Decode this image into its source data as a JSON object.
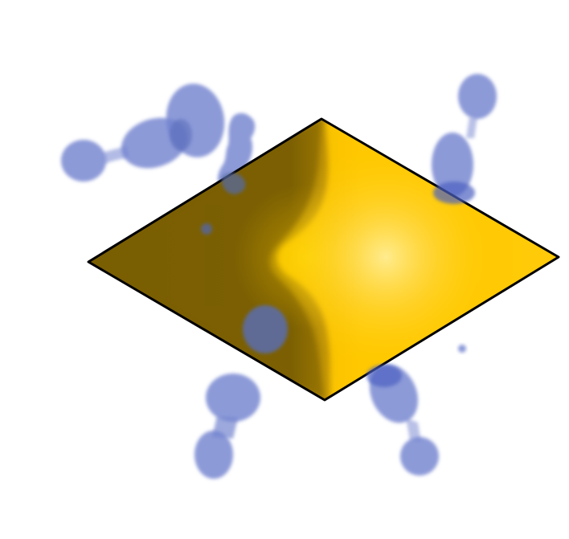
{
  "figure": {
    "description_visible_text": "",
    "colors": {
      "background": "#ffffff",
      "plane_dark": "#7a5e05",
      "plane_mid": "#c89a06",
      "plane_gold": "#ffcc00",
      "plane_highlight": "#ffe880",
      "plane_outline": "#000000",
      "lobe_fill": "#7384cf",
      "lobe_dark": "#4e5fae"
    },
    "elements": {
      "plane": "rhombus-surface",
      "lobes": "orbital-density-blobs"
    }
  }
}
